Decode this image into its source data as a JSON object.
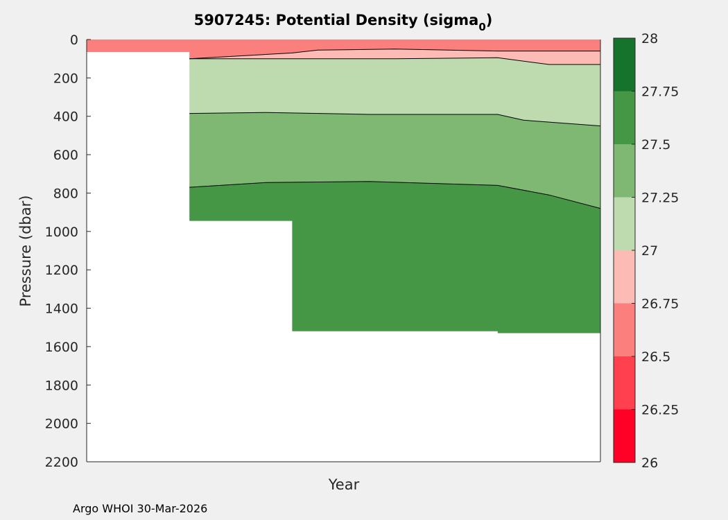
{
  "chart_data": {
    "type": "area",
    "title_main": "5907245: Potential Density (sigma",
    "title_sub": "0",
    "title_close": ")",
    "xlabel": "Year",
    "ylabel": "Pressure (dbar)",
    "ylim": [
      0,
      2200
    ],
    "y_inverted": true,
    "yticks": [
      0,
      200,
      400,
      600,
      800,
      1000,
      1200,
      1400,
      1600,
      1800,
      2000,
      2200
    ],
    "x_tick_labels": [],
    "grid": false,
    "colorbar": {
      "range": [
        26,
        28
      ],
      "ticks": [
        "26",
        "26.25",
        "26.5",
        "26.75",
        "27",
        "27.25",
        "27.5",
        "27.75",
        "28"
      ],
      "levels": [
        {
          "from": 26.0,
          "to": 26.25,
          "color": "#ff0026"
        },
        {
          "from": 26.25,
          "to": 26.5,
          "color": "#fe404f"
        },
        {
          "from": 26.5,
          "to": 26.75,
          "color": "#fa7f7d"
        },
        {
          "from": 26.75,
          "to": 27.0,
          "color": "#fdbbb6"
        },
        {
          "from": 27.0,
          "to": 27.25,
          "color": "#bddbaf"
        },
        {
          "from": 27.25,
          "to": 27.5,
          "color": "#7eb873"
        },
        {
          "from": 27.5,
          "to": 27.75,
          "color": "#459746"
        },
        {
          "from": 27.75,
          "to": 28.0,
          "color": "#15732c"
        }
      ]
    },
    "profiles_x": [
      0,
      0.2,
      0.4,
      0.6,
      0.8,
      1.0
    ],
    "bands": [
      {
        "level": "26.5-26.75",
        "color": "#fa7f7d",
        "top": [
          [
            0,
            0
          ],
          [
            0.2,
            0
          ],
          [
            0.2,
            0
          ],
          [
            1,
            0
          ]
        ],
        "bottom": [
          [
            0,
            65
          ],
          [
            0.2,
            65
          ],
          [
            0.2,
            100
          ],
          [
            0.4,
            70
          ],
          [
            0.45,
            55
          ],
          [
            0.6,
            50
          ],
          [
            0.8,
            60
          ],
          [
            1,
            60
          ]
        ]
      },
      {
        "level": "26.75-27",
        "color": "#fdbbb6",
        "top": [
          [
            0.2,
            100
          ],
          [
            0.4,
            70
          ],
          [
            0.45,
            55
          ],
          [
            0.6,
            50
          ],
          [
            0.8,
            60
          ],
          [
            1,
            60
          ]
        ],
        "bottom": [
          [
            0.2,
            100
          ],
          [
            0.4,
            100
          ],
          [
            0.6,
            100
          ],
          [
            0.8,
            95
          ],
          [
            0.9,
            130
          ],
          [
            1,
            130
          ]
        ]
      },
      {
        "level": "27-27.25",
        "color": "#bddbaf",
        "top": [
          [
            0.2,
            100
          ],
          [
            0.4,
            100
          ],
          [
            0.6,
            100
          ],
          [
            0.8,
            95
          ],
          [
            0.9,
            130
          ],
          [
            1,
            130
          ]
        ],
        "bottom": [
          [
            0.2,
            385
          ],
          [
            0.35,
            380
          ],
          [
            0.55,
            390
          ],
          [
            0.8,
            390
          ],
          [
            0.85,
            420
          ],
          [
            1,
            450
          ]
        ]
      },
      {
        "level": "27.25-27.5",
        "color": "#7eb873",
        "top": [
          [
            0.2,
            385
          ],
          [
            0.35,
            380
          ],
          [
            0.55,
            390
          ],
          [
            0.8,
            390
          ],
          [
            0.85,
            420
          ],
          [
            1,
            450
          ]
        ],
        "bottom": [
          [
            0.2,
            770
          ],
          [
            0.35,
            745
          ],
          [
            0.55,
            740
          ],
          [
            0.8,
            760
          ],
          [
            0.9,
            810
          ],
          [
            1,
            880
          ]
        ]
      },
      {
        "level": "27.5-27.75",
        "color": "#459746",
        "top": [
          [
            0.2,
            770
          ],
          [
            0.35,
            745
          ],
          [
            0.55,
            740
          ],
          [
            0.8,
            760
          ],
          [
            0.9,
            810
          ],
          [
            1,
            880
          ]
        ],
        "bottom": [
          [
            0.2,
            945
          ],
          [
            0.4,
            945
          ],
          [
            0.4,
            1520
          ],
          [
            0.8,
            1520
          ],
          [
            0.8,
            1530
          ],
          [
            1,
            1530
          ]
        ]
      }
    ],
    "footer": "Argo WHOI 30-Mar-2026"
  }
}
